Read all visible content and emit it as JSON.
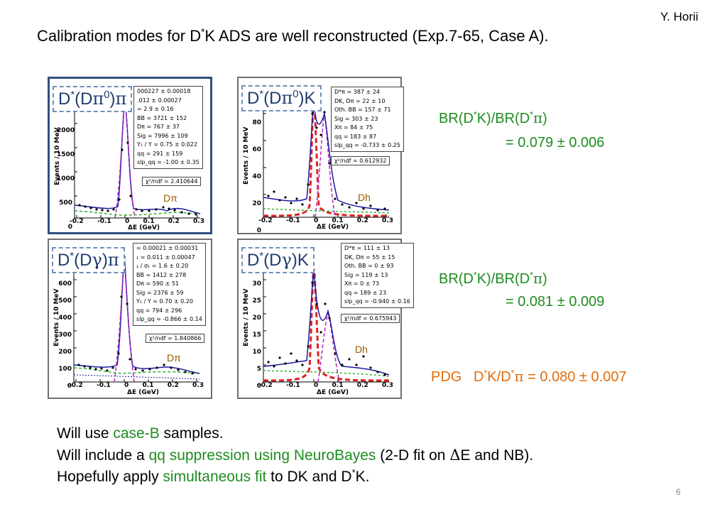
{
  "author": "Y. Horii",
  "title": {
    "pre": "Calibration modes for D",
    "sup": "*",
    "post": "K ADS are well reconstructed (Exp.7-65, Case A)."
  },
  "panels": [
    {
      "id": "p1",
      "label": [
        "D",
        "*",
        "(D",
        "π",
        "0",
        ")",
        "π"
      ],
      "ylabel": "Events / 10 MeV",
      "xlabel": "ΔE (GeV)",
      "yticks": [
        "0",
        "500",
        "1000",
        "1500",
        "2000"
      ],
      "xticks": [
        "-0.2",
        "-0.1",
        "0",
        "0.1",
        "0.2",
        "0.3"
      ],
      "stats": [
        "000227 ± 0.00018",
        ".012 ± 0.00027",
        "= 2.9 ± 0.16",
        "BB = 3721 ± 152",
        "Dπ = 767 ± 37",
        "Sig = 7996 ± 109",
        "Y₁ / Y = 0.75 ± 0.022",
        "qq = 291 ± 159",
        "slp_qq = -1.00 ± 0.35"
      ],
      "chi2": "χ²/ndf = 2.410644",
      "tag": "Dπ"
    },
    {
      "id": "p2",
      "label": [
        "D",
        "*",
        "(D",
        "π",
        "0",
        ")",
        "K"
      ],
      "ylabel": "Events / 10 MeV",
      "xlabel": "ΔE (GeV)",
      "yticks": [
        "0",
        "20",
        "40",
        "60",
        "80"
      ],
      "xticks": [
        "-0.2",
        "-0.1",
        "0",
        "0.1",
        "0.2",
        "0.3"
      ],
      "stats": [
        "D*π = 387 ± 24",
        "DK, Dπ = 22 ± 10",
        "Oth. BB = 157 ± 71",
        "Sig = 303 ± 23",
        "Xπ = 84 ± 75",
        "qq = 183 ± 87",
        "slp_qq = -0.733 ± 0.25"
      ],
      "chi2": "χ²/ndf = 0.612932",
      "tag": "Dh"
    },
    {
      "id": "p3",
      "label": [
        "D",
        "*",
        "(D",
        "γ",
        "",
        ")",
        "π"
      ],
      "ylabel": "Events / 10 MeV",
      "xlabel": "ΔE (GeV)",
      "yticks": [
        "0",
        "100",
        "200",
        "300",
        "400",
        "500",
        "600",
        "700"
      ],
      "xticks": [
        "-0.2",
        "-0.1",
        "0",
        "0.1",
        "0.2",
        "0.3"
      ],
      "stats": [
        "= 0.00021 ± 0.00031",
        "₁ = 0.011 ± 0.00047",
        "₂ / σ₁ = 1.6 ± 0.20",
        "BB = 1412 ± 278",
        "Dπ = 590 ± 51",
        "Sig = 2376 ± 59",
        "Y₁ / Y = 0.70 ± 0.20",
        "qq = 794 ± 296",
        "slp_qq = -0.866 ± 0.14"
      ],
      "chi2": "χ²/ndf = 1.840866",
      "tag": "Dπ"
    },
    {
      "id": "p4",
      "label": [
        "D",
        "*",
        "(D",
        "γ",
        "",
        ")",
        "K"
      ],
      "ylabel": "Events / 10 MeV",
      "xlabel": "ΔE (GeV)",
      "yticks": [
        "0",
        "5",
        "10",
        "15",
        "20",
        "25",
        "30",
        "35"
      ],
      "xticks": [
        "-0.2",
        "-0.1",
        "0",
        "0.1",
        "0.2",
        "0.3"
      ],
      "stats": [
        "D*π = 111 ± 13",
        "DK, Dπ = 55 ± 15",
        "Oth. BB = 0 ± 93",
        "Sig = 119 ± 13",
        "Xπ = 0 ± 73",
        "qq = 189 ± 23",
        "slp_qq = -0.940 ± 0.16"
      ],
      "chi2": "χ²/ndf = 0.675943",
      "tag": "Dh"
    }
  ],
  "ratios": [
    {
      "label": [
        "BR(D",
        "*",
        "K)/BR(D",
        "*",
        "π",
        ")"
      ],
      "value": "= 0.079 ± 0.006"
    },
    {
      "label": [
        "BR(D",
        "*",
        "K)/BR(D",
        "*",
        "π",
        ")"
      ],
      "value": "= 0.081 ± 0.009"
    }
  ],
  "pdg": {
    "prefix": "PDG",
    "a": "D",
    "sup1": "*",
    "b": "K/D",
    "sup2": "*",
    "pi": "π",
    "rest": " = 0.080 ± 0.007"
  },
  "bullets": {
    "b1": {
      "pre": "Will use ",
      "hl": "case-B",
      "post": " samples."
    },
    "b2": {
      "pre": "Will include a ",
      "hl": "qq suppression using NeuroBayes",
      "post": " (2-D fit on ",
      "delta": "Δ",
      "post2": "E and NB)."
    },
    "b3": {
      "pre": "Hopefully apply ",
      "hl": "simultaneous fit",
      "post": " to DK and D",
      "sup": "*",
      "post2": "K."
    }
  },
  "page_number": "6",
  "colors": {
    "green": "#1e8c1e",
    "orange": "#e46c0a",
    "label_blue": "#1f3d6e",
    "signal_red": "#e02020",
    "fit_blue": "#1a1aa0",
    "peak_magenta": "#c020c0",
    "bkg_green": "#30b030"
  }
}
